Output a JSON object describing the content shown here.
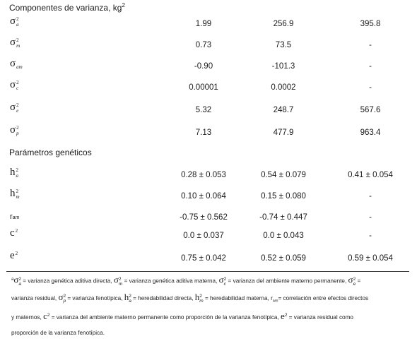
{
  "section_varianza": "Componentes de varianza, kg",
  "section_varianza_sup": "2",
  "section_parametros": "Parámetros genéticos",
  "varianza_rows": [
    {
      "sym": "σ",
      "sup": "2",
      "sub": "a",
      "c1": "1.99",
      "c2": "256.9",
      "c3": "395.8"
    },
    {
      "sym": "σ",
      "sup": "2",
      "sub": "m",
      "c1": "0.73",
      "c2": "73.5",
      "c3": "-"
    },
    {
      "sym": "σ",
      "sup": "",
      "sub": "am",
      "c1": "-0.90",
      "c2": "-101.3",
      "c3": "-"
    },
    {
      "sym": "σ",
      "sup": "2",
      "sub": "c",
      "c1": "0.00001",
      "c2": "0.0002",
      "c3": "-"
    },
    {
      "sym": "σ",
      "sup": "2",
      "sub": "e",
      "c1": "5.32",
      "c2": "248.7",
      "c3": "567.6"
    },
    {
      "sym": "σ",
      "sup": "2",
      "sub": "p",
      "c1": "7.13",
      "c2": "477.9",
      "c3": "963.4"
    }
  ],
  "parametros_rows": [
    {
      "sym": "h",
      "sup": "2",
      "sub": "a",
      "c1": "0.28 ± 0.053",
      "c2": "0.54 ± 0.079",
      "c3": "0.41 ± 0.054"
    },
    {
      "sym": "h",
      "sup": "2",
      "sub": "m",
      "c1": "0.10 ± 0.064",
      "c2": "0.15 ± 0.080",
      "c3": "-"
    },
    {
      "sym": "r",
      "sup": "",
      "sub": "am",
      "c1": "-0.75 ± 0.562",
      "c2": "-0.74 ± 0.447",
      "c3": "-"
    },
    {
      "sym": "c",
      "sup": "2",
      "sub": "",
      "c1": "0.0 ± 0.037",
      "c2": "0.0 ± 0.043",
      "c3": "-"
    },
    {
      "sym": "e",
      "sup": "2",
      "sub": "",
      "c1": "0.75 ± 0.042",
      "c2": "0.52 ± 0.059",
      "c3": "0.59 ± 0.054"
    }
  ],
  "footnote": {
    "marker": "a",
    "t1": "= varianza genética aditiva directa,",
    "t2": "= varianza genética aditiva materna,",
    "t3": "= varianza del ambiente materno permanente,",
    "t4": "=",
    "t5": "varianza residual,",
    "t6": "= varianza fenotípica,",
    "t7": "= heredabilidad directa,",
    "t8": "= heredabilidad materna,",
    "ram": "r",
    "ram_sub": "am",
    "t9": "= correlación entre efectos directos",
    "t10": "y maternos,",
    "t11": "= varianza del ambiente materno permanente como proporción de la varianza fenotípica,",
    "t12": "= varianza residual como",
    "t13": "proporción de la varianza fenotípica."
  }
}
